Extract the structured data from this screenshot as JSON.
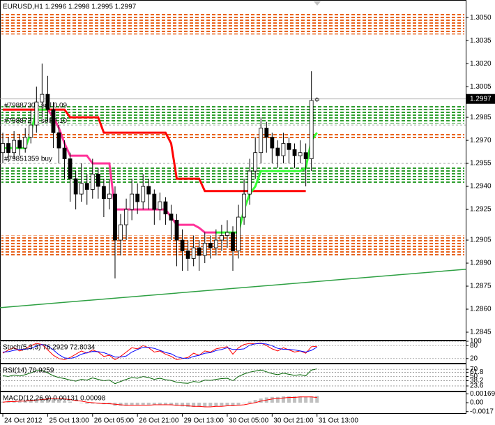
{
  "chart_data": [
    {
      "type": "candlestick",
      "title": "EURUSD,H1  1.2996 1.2998 1.2995 1.2997",
      "xlim": [
        -0.5,
        82.5
      ],
      "xticks": [
        {
          "value": 0,
          "label": "24 Oct 2012"
        },
        {
          "value": 8,
          "label": "25 Oct 13:00"
        },
        {
          "value": 16,
          "label": "26 Oct 05:00"
        },
        {
          "value": 24,
          "label": "26 Oct 21:00"
        },
        {
          "value": 32,
          "label": "29 Oct 13:00"
        },
        {
          "value": 40,
          "label": "30 Oct 05:00"
        },
        {
          "value": 48,
          "label": "30 Oct 21:00"
        },
        {
          "value": 56,
          "label": "31 Oct 13:00"
        }
      ],
      "ylim": [
        1.284,
        1.3061
      ],
      "yticks": [
        {
          "value": 1.305,
          "label": "1.3050"
        },
        1.3035,
        {
          "value": 1.302,
          "label": "1.3020"
        },
        1.3005,
        1.2985,
        {
          "value": 1.297,
          "label": "1.2970"
        },
        1.2955,
        {
          "value": 1.294,
          "label": "1.2940"
        },
        1.2925,
        1.2905,
        {
          "value": 1.289,
          "label": "1.2890"
        },
        1.2875,
        {
          "value": 1.286,
          "label": "1.2860"
        },
        1.2845
      ],
      "open": [
        1.2962,
        1.2968,
        1.2962,
        1.297,
        1.2965,
        1.2972,
        1.298,
        1.2995,
        1.3,
        1.299,
        1.2975,
        1.2965,
        1.2958,
        1.2945,
        1.2935,
        1.2942,
        1.2938,
        1.2948,
        1.294,
        1.2932,
        1.2935,
        1.2905,
        1.2915,
        1.2925,
        1.2935,
        1.293,
        1.294,
        1.2935,
        1.2925,
        1.293,
        1.2922,
        1.2918,
        1.2905,
        1.2898,
        1.2893,
        1.29,
        1.2895,
        1.2903,
        1.29,
        1.2905,
        1.2908,
        1.291,
        1.2898,
        1.292,
        1.2935,
        1.295,
        1.2962,
        1.2978,
        1.2972,
        1.2965,
        1.296,
        1.2968,
        1.2964,
        1.296,
        1.2962,
        1.2958,
        1.2996
      ],
      "high": [
        1.2975,
        1.2972,
        1.2976,
        1.2974,
        1.2978,
        1.299,
        1.3005,
        1.302,
        1.3012,
        1.2995,
        1.298,
        1.297,
        1.2962,
        1.295,
        1.2955,
        1.2948,
        1.2958,
        1.2952,
        1.2945,
        1.2945,
        1.294,
        1.2922,
        1.2932,
        1.2945,
        1.2942,
        1.2948,
        1.2945,
        1.2938,
        1.2936,
        1.2933,
        1.2928,
        1.2922,
        1.2912,
        1.2905,
        1.2908,
        1.2905,
        1.291,
        1.2908,
        1.2912,
        1.2915,
        1.2918,
        1.2914,
        1.2928,
        1.2945,
        1.2958,
        1.2972,
        1.2985,
        1.2982,
        1.2975,
        1.297,
        1.2975,
        1.2972,
        1.2968,
        1.297,
        1.2968,
        1.3015,
        1.2998
      ],
      "low": [
        1.2955,
        1.2956,
        1.2958,
        1.296,
        1.2962,
        1.2968,
        1.2975,
        1.2985,
        1.2982,
        1.2965,
        1.2955,
        1.2945,
        1.293,
        1.2925,
        1.293,
        1.2928,
        1.2932,
        1.2932,
        1.292,
        1.2925,
        1.288,
        1.2895,
        1.2905,
        1.2918,
        1.2922,
        1.2925,
        1.2925,
        1.2915,
        1.2918,
        1.2915,
        1.2905,
        1.2888,
        1.2885,
        1.2885,
        1.2888,
        1.2885,
        1.289,
        1.2893,
        1.2895,
        1.2898,
        1.29,
        1.2885,
        1.2893,
        1.2915,
        1.2928,
        1.2945,
        1.2955,
        1.2962,
        1.2955,
        1.2952,
        1.2955,
        1.2955,
        1.2952,
        1.2955,
        1.294,
        1.295,
        1.2995
      ],
      "close": [
        1.2968,
        1.2962,
        1.297,
        1.2965,
        1.2972,
        1.298,
        1.2995,
        1.3,
        1.299,
        1.2975,
        1.2965,
        1.2958,
        1.2945,
        1.2935,
        1.2942,
        1.2938,
        1.2948,
        1.294,
        1.2932,
        1.2935,
        1.2905,
        1.2915,
        1.2925,
        1.2935,
        1.293,
        1.294,
        1.2935,
        1.2925,
        1.293,
        1.2922,
        1.2918,
        1.2905,
        1.2898,
        1.2893,
        1.29,
        1.2895,
        1.2903,
        1.29,
        1.2905,
        1.2908,
        1.291,
        1.2898,
        1.292,
        1.2935,
        1.295,
        1.2962,
        1.2978,
        1.2972,
        1.2965,
        1.296,
        1.2968,
        1.2964,
        1.296,
        1.2962,
        1.2958,
        1.2996,
        1.2997
      ],
      "series": [
        {
          "color": "#ff0000",
          "values": [
            1.299,
            1.299,
            1.299,
            1.299,
            1.299,
            1.299,
            1.299,
            1.299,
            1.299,
            1.299,
            1.299,
            1.299,
            1.2985,
            1.2985,
            1.2985,
            1.2985,
            1.2985,
            1.2985,
            1.2975,
            1.2975,
            1.2975,
            1.2975,
            1.2975,
            1.2975,
            1.2975,
            1.2975,
            1.2975,
            1.2975,
            1.2975,
            1.2975,
            1.2968,
            1.2945,
            1.2945,
            1.2945,
            1.2945,
            1.2945,
            1.2937,
            1.2937,
            1.2937,
            1.2937,
            1.2937,
            1.2937,
            1.2937,
            1.2937,
            1.2937,
            1.2937,
            1.2937,
            1.2937,
            1.2937,
            1.2937,
            1.2937,
            1.2937,
            1.2937,
            1.2937,
            1.2937,
            null,
            null
          ]
        },
        {
          "color": "#ff3399",
          "values": [
            null,
            null,
            null,
            null,
            null,
            null,
            null,
            null,
            1.299,
            1.2985,
            1.2978,
            1.2968,
            1.296,
            1.296,
            1.296,
            1.296,
            1.2955,
            1.2955,
            1.2955,
            1.2955,
            1.2925,
            1.2925,
            1.2925,
            1.2925,
            1.2925,
            1.2925,
            1.2925,
            1.2925,
            1.2925,
            1.2925,
            1.292,
            1.2915,
            1.2915,
            1.2915,
            1.2915,
            1.2913,
            1.291,
            1.291,
            1.291,
            null,
            null,
            null,
            null,
            null,
            null,
            null,
            null,
            null,
            null,
            null,
            null,
            null,
            null,
            null,
            null,
            null,
            null
          ]
        },
        {
          "color": "#33ff33",
          "values": [
            1.2965,
            1.2965,
            1.2965,
            1.2965,
            1.2965,
            1.2975,
            1.299,
            1.299,
            1.299,
            null,
            null,
            null,
            null,
            null,
            null,
            null,
            null,
            null,
            null,
            null,
            null,
            null,
            null,
            null,
            null,
            null,
            null,
            null,
            null,
            null,
            null,
            null,
            null,
            null,
            null,
            null,
            null,
            null,
            1.291,
            1.291,
            1.291,
            1.291,
            1.291,
            1.2925,
            1.2935,
            1.294,
            1.295,
            1.295,
            1.295,
            1.295,
            1.295,
            1.295,
            1.295,
            1.295,
            1.2952,
            1.297,
            1.2975
          ]
        }
      ],
      "zones": [
        {
          "from": 1.3053,
          "to": 1.3039,
          "color": "#e8641e"
        },
        {
          "from": 1.2993,
          "to": 1.2981,
          "color": "#2e9e2e"
        },
        {
          "from": 1.2975,
          "to": 1.2971,
          "color": "#e8641e"
        },
        {
          "from": 1.2953,
          "to": 1.2942,
          "color": "#2e9e2e"
        },
        {
          "from": 1.2908,
          "to": 1.2895,
          "color": "#e8641e"
        }
      ],
      "orders": [
        {
          "label": "#79887305 sell 0.09",
          "price": 1.299
        },
        {
          "label": "#79887271 sell 0.10",
          "price": 1.298
        },
        {
          "label": "#79851359 buy",
          "price": 1.2955
        }
      ],
      "trendline": {
        "color": "#2ea043",
        "values": [
          1.2861,
          1.2886
        ]
      },
      "last_price": 1.2997
    },
    {
      "type": "line",
      "title": "Stoch(5,3,3) 76.2929 72.8034",
      "ylim": [
        0,
        100
      ],
      "yticks": [
        100,
        80,
        20
      ],
      "grid": true,
      "series": [
        {
          "color": "#ff0000",
          "values": [
            45,
            60,
            70,
            55,
            65,
            80,
            90,
            85,
            60,
            35,
            20,
            15,
            25,
            40,
            55,
            45,
            60,
            50,
            30,
            35,
            15,
            30,
            50,
            70,
            65,
            80,
            70,
            50,
            55,
            40,
            30,
            15,
            20,
            25,
            45,
            35,
            55,
            50,
            65,
            70,
            75,
            40,
            70,
            85,
            90,
            88,
            92,
            80,
            65,
            55,
            70,
            60,
            50,
            55,
            45,
            75,
            76.2929
          ]
        },
        {
          "color": "#0000ff",
          "values": [
            50,
            52,
            58,
            62,
            63,
            67,
            78,
            85,
            78,
            60,
            38,
            23,
            20,
            27,
            40,
            47,
            53,
            52,
            47,
            38,
            27,
            27,
            32,
            50,
            62,
            72,
            72,
            67,
            58,
            48,
            42,
            28,
            22,
            20,
            30,
            35,
            45,
            47,
            57,
            62,
            70,
            62,
            62,
            65,
            82,
            88,
            90,
            87,
            79,
            67,
            63,
            62,
            60,
            55,
            50,
            58,
            72.8034
          ]
        }
      ]
    },
    {
      "type": "line",
      "title": "RSI(14) 70.9259",
      "ylim": [
        10,
        84
      ],
      "yticks": [
        70,
        61.8,
        50,
        38.2,
        23.6
      ],
      "grid": true,
      "series": [
        {
          "color": "#006400",
          "values": [
            52,
            50,
            54,
            51,
            55,
            60,
            66,
            67,
            60,
            52,
            47,
            44,
            40,
            37,
            42,
            40,
            46,
            42,
            38,
            40,
            30,
            36,
            42,
            47,
            45,
            50,
            47,
            42,
            45,
            41,
            39,
            34,
            32,
            31,
            36,
            34,
            40,
            39,
            42,
            44,
            45,
            38,
            50,
            57,
            62,
            65,
            68,
            63,
            58,
            55,
            59,
            56,
            53,
            55,
            52,
            68,
            70.9259
          ]
        }
      ]
    },
    {
      "type": "bar",
      "title": "MACD(12,26,9) 0.00131 0.00098",
      "ylim": [
        -0.002,
        0.002
      ],
      "yticks": [
        0.00169,
        {
          "value": 0,
          "label": "0.00"
        },
        -0.0017
      ],
      "color": "#c0c0c0",
      "values": [
        0.0002,
        0.0002,
        0.0003,
        0.0003,
        0.0004,
        0.0005,
        0.0007,
        0.0009,
        0.0009,
        0.0008,
        0.0006,
        0.0004,
        0.0002,
        0,
        -0.0001,
        -0.0002,
        -0.0002,
        -0.0002,
        -0.0003,
        -0.0003,
        -0.0006,
        -0.0006,
        -0.0006,
        -0.0005,
        -0.0005,
        -0.0004,
        -0.0004,
        -0.0004,
        -0.0004,
        -0.0004,
        -0.0005,
        -0.0006,
        -0.0007,
        -0.0008,
        -0.0008,
        -0.0008,
        -0.0008,
        -0.0007,
        -0.0007,
        -0.0006,
        -0.0005,
        -0.0006,
        -0.0004,
        -0.0001,
        0.0002,
        0.0005,
        0.0008,
        0.001,
        0.0011,
        0.0011,
        0.0012,
        0.0012,
        0.0012,
        0.0012,
        0.0011,
        0.0012,
        0.00131
      ],
      "series": [
        {
          "color": "#ff0000",
          "values": [
            0.0001,
            0.0002,
            0.0002,
            0.0003,
            0.0003,
            0.0004,
            0.0005,
            0.0006,
            0.0007,
            0.0008,
            0.0008,
            0.0007,
            0.0006,
            0.0004,
            0.0003,
            0.0001,
            0,
            -0.0001,
            -0.0002,
            -0.0002,
            -0.0003,
            -0.0004,
            -0.0005,
            -0.0005,
            -0.0005,
            -0.0005,
            -0.0005,
            -0.0004,
            -0.0004,
            -0.0004,
            -0.0004,
            -0.0005,
            -0.0005,
            -0.0006,
            -0.0007,
            -0.0007,
            -0.0008,
            -0.0008,
            -0.0007,
            -0.0007,
            -0.0006,
            -0.0006,
            -0.0005,
            -0.0004,
            -0.0002,
            0,
            0.0003,
            0.0005,
            0.0007,
            0.0008,
            0.0009,
            0.001,
            0.001,
            0.0011,
            0.0011,
            0.0011,
            0.00098
          ]
        }
      ]
    }
  ]
}
